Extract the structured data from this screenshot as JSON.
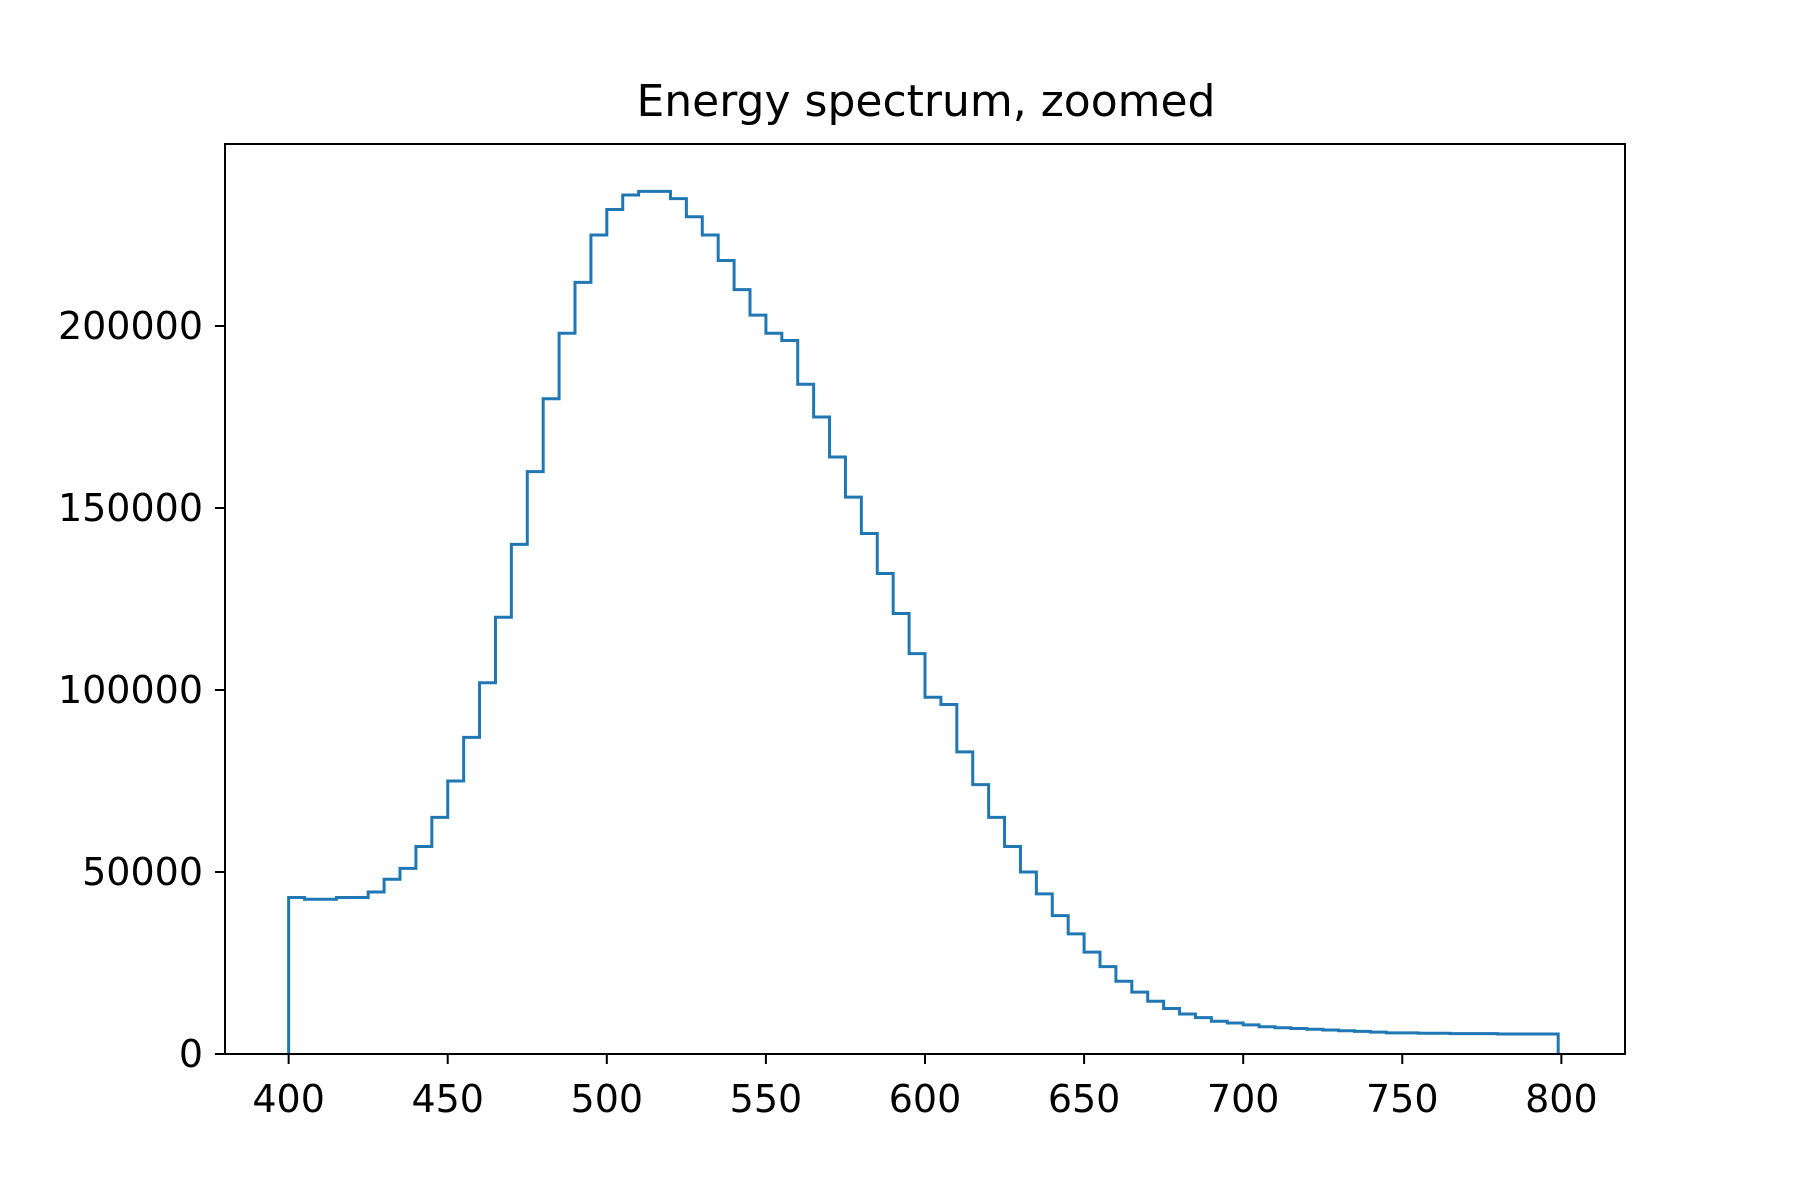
{
  "chart_data": {
    "type": "line",
    "step": true,
    "title": "Energy spectrum, zoomed",
    "xlabel": "",
    "ylabel": "",
    "xlim": [
      380,
      820
    ],
    "ylim": [
      0,
      250000
    ],
    "grid": false,
    "legend": "none",
    "xticks": [
      400,
      450,
      500,
      550,
      600,
      650,
      700,
      750,
      800
    ],
    "yticks": [
      0,
      50000,
      100000,
      150000,
      200000
    ],
    "xtick_labels": [
      "400",
      "450",
      "500",
      "550",
      "600",
      "650",
      "700",
      "750",
      "800"
    ],
    "ytick_labels": [
      "0",
      "50000",
      "100000",
      "150000",
      "200000"
    ],
    "colors": {
      "series": "#1f77b4",
      "axes": "#000000"
    },
    "series": [
      {
        "x": [
          400,
          405,
          410,
          415,
          420,
          425,
          430,
          435,
          440,
          445,
          450,
          455,
          460,
          465,
          470,
          475,
          480,
          485,
          490,
          495,
          500,
          505,
          510,
          515,
          520,
          525,
          530,
          535,
          540,
          545,
          550,
          555,
          560,
          565,
          570,
          575,
          580,
          585,
          590,
          595,
          600,
          605,
          610,
          615,
          620,
          625,
          630,
          635,
          640,
          645,
          650,
          655,
          660,
          665,
          670,
          675,
          680,
          685,
          690,
          695,
          700,
          705,
          710,
          715,
          720,
          725,
          730,
          735,
          740,
          745,
          750,
          755,
          760,
          765,
          770,
          775,
          780,
          785,
          790,
          795,
          799
        ],
        "values": [
          43000,
          42500,
          42500,
          43000,
          43000,
          44500,
          48000,
          51000,
          57000,
          65000,
          75000,
          87000,
          102000,
          120000,
          140000,
          160000,
          180000,
          198000,
          212000,
          225000,
          232000,
          236000,
          237000,
          237000,
          235000,
          230000,
          225000,
          218000,
          210000,
          203000,
          198000,
          196000,
          184000,
          175000,
          164000,
          153000,
          143000,
          132000,
          121000,
          110000,
          98000,
          96000,
          83000,
          74000,
          65000,
          57000,
          50000,
          44000,
          38000,
          33000,
          28000,
          24000,
          20000,
          17000,
          14500,
          12500,
          11000,
          10000,
          9000,
          8500,
          8000,
          7500,
          7200,
          7000,
          6800,
          6600,
          6400,
          6200,
          6000,
          5800,
          5800,
          5700,
          5700,
          5600,
          5600,
          5600,
          5500,
          5500,
          5500,
          5500,
          5500
        ]
      }
    ]
  }
}
